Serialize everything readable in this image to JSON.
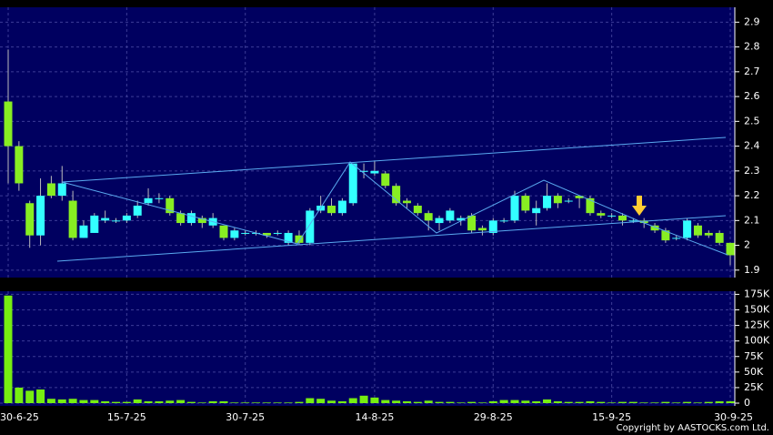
{
  "chart_data": [
    {
      "type": "candlestick",
      "up_color": "#33ffff",
      "down_color": "#88ee22",
      "background": "#000060",
      "ylim": [
        1.87,
        2.96
      ],
      "yticks": [
        1.9,
        2,
        2.1,
        2.2,
        2.3,
        2.4,
        2.5,
        2.6,
        2.7,
        2.8,
        2.9
      ],
      "grid": true,
      "open": [
        2.58,
        2.4,
        2.17,
        2.04,
        2.25,
        2.2,
        2.18,
        2.03,
        2.05,
        2.1,
        2.1,
        2.1,
        2.12,
        2.17,
        2.19,
        2.19,
        2.13,
        2.09,
        2.11,
        2.08,
        2.08,
        2.03,
        2.05,
        2.05,
        2.05,
        2.05,
        2.01,
        2.04,
        2.01,
        2.14,
        2.16,
        2.13,
        2.17,
        2.3,
        2.29,
        2.29,
        2.24,
        2.18,
        2.16,
        2.13,
        2.09,
        2.1,
        2.1,
        2.12,
        2.07,
        2.05,
        2.1,
        2.1,
        2.2,
        2.13,
        2.15,
        2.2,
        2.18,
        2.2,
        2.19,
        2.13,
        2.12,
        2.12,
        2.1,
        2.1,
        2.08,
        2.06,
        2.03,
        2.03,
        2.08,
        2.05,
        2.05,
        2.01
      ],
      "high": [
        2.79,
        2.42,
        2.18,
        2.27,
        2.28,
        2.32,
        2.22,
        2.1,
        2.13,
        2.14,
        2.11,
        2.13,
        2.18,
        2.23,
        2.21,
        2.2,
        2.14,
        2.14,
        2.12,
        2.13,
        2.08,
        2.07,
        2.06,
        2.06,
        2.05,
        2.06,
        2.06,
        2.06,
        2.15,
        2.2,
        2.19,
        2.19,
        2.33,
        2.33,
        2.34,
        2.3,
        2.25,
        2.19,
        2.17,
        2.14,
        2.12,
        2.15,
        2.12,
        2.13,
        2.08,
        2.11,
        2.11,
        2.22,
        2.21,
        2.18,
        2.25,
        2.21,
        2.19,
        2.2,
        2.2,
        2.14,
        2.13,
        2.13,
        2.11,
        2.11,
        2.09,
        2.07,
        2.04,
        2.11,
        2.09,
        2.06,
        2.06,
        2.01
      ],
      "low": [
        2.25,
        2.22,
        1.99,
        2.0,
        2.19,
        2.18,
        2.02,
        2.03,
        2.05,
        2.09,
        2.09,
        2.09,
        2.11,
        2.16,
        2.17,
        2.12,
        2.08,
        2.08,
        2.07,
        2.07,
        2.02,
        2.02,
        2.04,
        2.04,
        2.03,
        2.04,
        2.0,
        2.0,
        2.0,
        2.13,
        2.12,
        2.12,
        2.16,
        2.27,
        2.28,
        2.23,
        2.16,
        2.15,
        2.12,
        2.06,
        2.06,
        2.09,
        2.08,
        2.05,
        2.04,
        2.04,
        2.09,
        2.09,
        2.13,
        2.08,
        2.14,
        2.15,
        2.17,
        2.15,
        2.12,
        2.11,
        2.11,
        2.08,
        2.09,
        2.07,
        2.05,
        2.01,
        2.02,
        2.02,
        2.03,
        2.03,
        2.0,
        1.92
      ],
      "close": [
        2.4,
        2.25,
        2.04,
        2.2,
        2.2,
        2.25,
        2.03,
        2.08,
        2.12,
        2.11,
        2.1,
        2.12,
        2.16,
        2.19,
        2.19,
        2.13,
        2.09,
        2.13,
        2.09,
        2.11,
        2.03,
        2.06,
        2.05,
        2.05,
        2.04,
        2.05,
        2.05,
        2.01,
        2.14,
        2.16,
        2.13,
        2.18,
        2.33,
        2.3,
        2.3,
        2.24,
        2.17,
        2.17,
        2.13,
        2.1,
        2.11,
        2.14,
        2.11,
        2.06,
        2.06,
        2.1,
        2.1,
        2.2,
        2.14,
        2.15,
        2.2,
        2.17,
        2.18,
        2.19,
        2.13,
        2.12,
        2.12,
        2.1,
        2.1,
        2.09,
        2.06,
        2.02,
        2.03,
        2.1,
        2.04,
        2.04,
        2.01,
        1.96
      ]
    },
    {
      "type": "bar",
      "color": "#77ee11",
      "background": "#000060",
      "grid": true,
      "ylim": [
        0,
        180000
      ],
      "yticks": [
        {
          "value": 0,
          "label": "0"
        },
        {
          "value": 25000,
          "label": "25K"
        },
        {
          "value": 50000,
          "label": "50K"
        },
        {
          "value": 75000,
          "label": "75K"
        },
        {
          "value": 100000,
          "label": "100K"
        },
        {
          "value": 125000,
          "label": "125K"
        },
        {
          "value": 150000,
          "label": "150K"
        },
        {
          "value": 175000,
          "label": "175K"
        }
      ],
      "categories": [
        "30-6-25",
        null,
        null,
        null,
        null,
        null,
        null,
        null,
        null,
        null,
        null,
        "15-7-25",
        null,
        null,
        null,
        null,
        null,
        null,
        null,
        null,
        null,
        null,
        "30-7-25",
        null,
        null,
        null,
        null,
        null,
        null,
        null,
        null,
        null,
        null,
        null,
        "14-8-25",
        null,
        null,
        null,
        null,
        null,
        null,
        null,
        null,
        null,
        null,
        "29-8-25",
        null,
        null,
        null,
        null,
        null,
        null,
        null,
        null,
        null,
        null,
        "15-9-25",
        null,
        null,
        null,
        null,
        null,
        null,
        null,
        null,
        null,
        null,
        "30-9-25"
      ],
      "values": [
        173000,
        25000,
        20000,
        22000,
        7000,
        6000,
        7000,
        5000,
        5000,
        3000,
        2000,
        2000,
        6000,
        3000,
        3000,
        4000,
        5000,
        2000,
        1000,
        3000,
        3000,
        1000,
        1000,
        1000,
        1000,
        1000,
        1000,
        2000,
        8000,
        7000,
        4000,
        3000,
        8000,
        12000,
        9000,
        5000,
        4000,
        3000,
        2000,
        4000,
        2000,
        2000,
        1000,
        2000,
        1000,
        3000,
        5000,
        5000,
        4000,
        3000,
        6000,
        3000,
        2000,
        2000,
        3000,
        2000,
        1000,
        2000,
        2000,
        1000,
        1000,
        2000,
        1000,
        2000,
        1000,
        2000,
        3000,
        3000
      ]
    },
    {
      "copyright": "Copyright by AASTOCKS.com Ltd."
    }
  ]
}
